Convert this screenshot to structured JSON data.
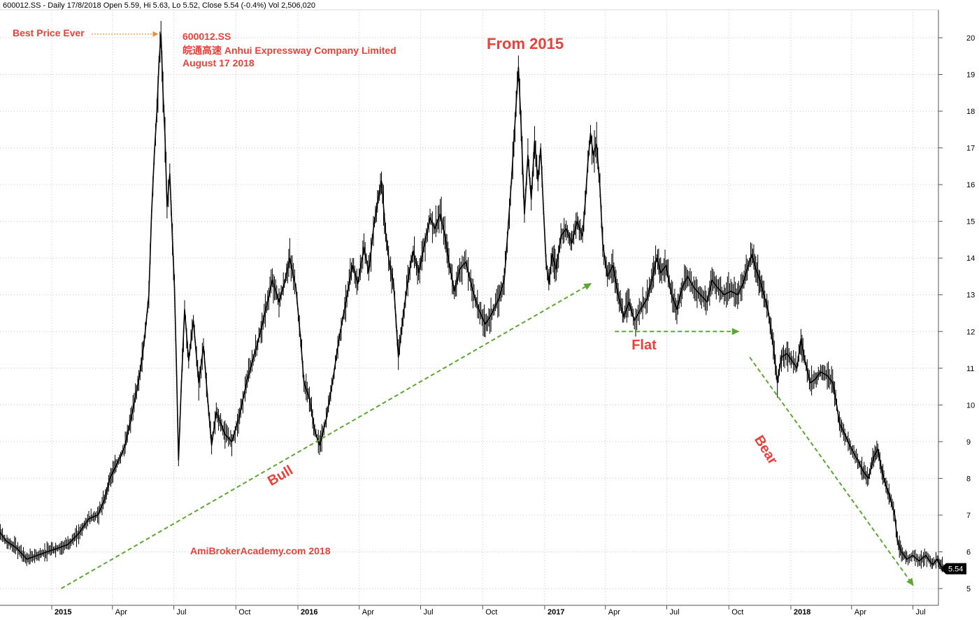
{
  "header": {
    "text": "600012.SS - Daily 17/8/2018 Open 5.59, Hi 5.63, Lo 5.52, Close 5.54 (-0.4%) Vol 2,506,020"
  },
  "info": {
    "ticker": "600012.SS",
    "name": "皖通高速 Anhui Expressway Company Limited",
    "date": "August 17 2018"
  },
  "title": "From 2015",
  "annotations": {
    "best_price": "Best Price Ever",
    "bull": "Bull",
    "flat": "Flat",
    "bear": "Bear",
    "watermark": "AmiBrokerAcademy.com  2018"
  },
  "price_tag": "5.54",
  "colors": {
    "annotation": "#e8413a",
    "trend": "#5aa832",
    "price": "#000000",
    "grid": "#c8c8c8"
  },
  "chart_data": {
    "type": "line",
    "ylim": [
      4.6,
      20.5
    ],
    "y_ticks": [
      5,
      6,
      7,
      8,
      9,
      10,
      11,
      12,
      13,
      14,
      15,
      16,
      17,
      18,
      19,
      20
    ],
    "x_ticks": [
      {
        "label": "2015",
        "bold": true,
        "x": "2015-01-01"
      },
      {
        "label": "Apr",
        "bold": false,
        "x": "2015-04-01"
      },
      {
        "label": "Jul",
        "bold": false,
        "x": "2015-07-01"
      },
      {
        "label": "Oct",
        "bold": false,
        "x": "2015-10-01"
      },
      {
        "label": "2016",
        "bold": true,
        "x": "2016-01-01"
      },
      {
        "label": "Apr",
        "bold": false,
        "x": "2016-04-01"
      },
      {
        "label": "Jul",
        "bold": false,
        "x": "2016-07-01"
      },
      {
        "label": "Oct",
        "bold": false,
        "x": "2016-10-01"
      },
      {
        "label": "2017",
        "bold": true,
        "x": "2017-01-01"
      },
      {
        "label": "Apr",
        "bold": false,
        "x": "2017-04-01"
      },
      {
        "label": "Jul",
        "bold": false,
        "x": "2017-07-01"
      },
      {
        "label": "Oct",
        "bold": false,
        "x": "2017-10-01"
      },
      {
        "label": "2018",
        "bold": true,
        "x": "2018-01-01"
      },
      {
        "label": "Apr",
        "bold": false,
        "x": "2018-04-01"
      },
      {
        "label": "Jul",
        "bold": false,
        "x": "2018-07-01"
      }
    ],
    "series": [
      {
        "values": [
          [
            "2014-06-20",
            5.1
          ],
          [
            "2014-07-10",
            5.3
          ],
          [
            "2014-08-01",
            5.2
          ],
          [
            "2014-08-25",
            5.5
          ],
          [
            "2014-09-15",
            5.8
          ],
          [
            "2014-10-01",
            6.2
          ],
          [
            "2014-10-10",
            6.7
          ],
          [
            "2014-10-25",
            6.3
          ],
          [
            "2014-11-10",
            6.1
          ],
          [
            "2014-11-25",
            5.8
          ],
          [
            "2014-12-10",
            5.9
          ],
          [
            "2014-12-25",
            6.0
          ],
          [
            "2015-01-10",
            6.1
          ],
          [
            "2015-01-25",
            6.2
          ],
          [
            "2015-02-10",
            6.5
          ],
          [
            "2015-02-25",
            6.9
          ],
          [
            "2015-03-10",
            7.0
          ],
          [
            "2015-03-20",
            7.4
          ],
          [
            "2015-03-28",
            8.0
          ],
          [
            "2015-04-08",
            8.4
          ],
          [
            "2015-04-20",
            8.9
          ],
          [
            "2015-04-28",
            9.6
          ],
          [
            "2015-05-05",
            10.2
          ],
          [
            "2015-05-12",
            10.9
          ],
          [
            "2015-05-18",
            11.7
          ],
          [
            "2015-05-25",
            13.0
          ],
          [
            "2015-05-29",
            15.2
          ],
          [
            "2015-06-02",
            16.8
          ],
          [
            "2015-06-06",
            18.0
          ],
          [
            "2015-06-09",
            19.3
          ],
          [
            "2015-06-12",
            20.1
          ],
          [
            "2015-06-15",
            18.5
          ],
          [
            "2015-06-18",
            17.3
          ],
          [
            "2015-06-21",
            15.4
          ],
          [
            "2015-06-25",
            16.3
          ],
          [
            "2015-06-29",
            14.5
          ],
          [
            "2015-07-02",
            13.2
          ],
          [
            "2015-07-05",
            11.0
          ],
          [
            "2015-07-08",
            8.5
          ],
          [
            "2015-07-12",
            10.5
          ],
          [
            "2015-07-17",
            12.6
          ],
          [
            "2015-07-23",
            11.2
          ],
          [
            "2015-07-30",
            12.3
          ],
          [
            "2015-08-07",
            10.6
          ],
          [
            "2015-08-14",
            11.6
          ],
          [
            "2015-08-20",
            10.2
          ],
          [
            "2015-08-26",
            8.9
          ],
          [
            "2015-09-02",
            9.8
          ],
          [
            "2015-09-15",
            9.2
          ],
          [
            "2015-09-25",
            9.0
          ],
          [
            "2015-10-05",
            9.6
          ],
          [
            "2015-10-18",
            10.7
          ],
          [
            "2015-11-01",
            11.6
          ],
          [
            "2015-11-12",
            12.4
          ],
          [
            "2015-11-24",
            13.4
          ],
          [
            "2015-12-04",
            12.8
          ],
          [
            "2015-12-12",
            13.3
          ],
          [
            "2015-12-20",
            14.0
          ],
          [
            "2015-12-29",
            13.2
          ],
          [
            "2016-01-05",
            11.8
          ],
          [
            "2016-01-10",
            10.6
          ],
          [
            "2016-01-18",
            10.2
          ],
          [
            "2016-01-26",
            9.3
          ],
          [
            "2016-02-02",
            8.9
          ],
          [
            "2016-02-12",
            9.6
          ],
          [
            "2016-02-22",
            10.7
          ],
          [
            "2016-03-02",
            11.8
          ],
          [
            "2016-03-12",
            12.8
          ],
          [
            "2016-03-22",
            13.8
          ],
          [
            "2016-03-30",
            13.3
          ],
          [
            "2016-04-08",
            14.3
          ],
          [
            "2016-04-15",
            13.6
          ],
          [
            "2016-04-22",
            14.8
          ],
          [
            "2016-04-28",
            15.5
          ],
          [
            "2016-05-04",
            16.1
          ],
          [
            "2016-05-10",
            14.7
          ],
          [
            "2016-05-16",
            13.8
          ],
          [
            "2016-05-22",
            13.3
          ],
          [
            "2016-05-29",
            11.3
          ],
          [
            "2016-06-05",
            12.4
          ],
          [
            "2016-06-12",
            13.4
          ],
          [
            "2016-06-20",
            14.2
          ],
          [
            "2016-06-28",
            13.6
          ],
          [
            "2016-07-06",
            14.3
          ],
          [
            "2016-07-15",
            15.1
          ],
          [
            "2016-07-22",
            14.8
          ],
          [
            "2016-07-30",
            15.2
          ],
          [
            "2016-08-06",
            14.6
          ],
          [
            "2016-08-12",
            13.9
          ],
          [
            "2016-08-20",
            13.1
          ],
          [
            "2016-08-28",
            13.7
          ],
          [
            "2016-09-06",
            13.9
          ],
          [
            "2016-09-15",
            13.2
          ],
          [
            "2016-09-25",
            12.6
          ],
          [
            "2016-10-05",
            12.2
          ],
          [
            "2016-10-15",
            12.5
          ],
          [
            "2016-10-25",
            12.9
          ],
          [
            "2016-11-02",
            13.4
          ],
          [
            "2016-11-08",
            14.9
          ],
          [
            "2016-11-13",
            16.2
          ],
          [
            "2016-11-18",
            17.7
          ],
          [
            "2016-11-23",
            19.2
          ],
          [
            "2016-11-27",
            17.6
          ],
          [
            "2016-12-02",
            15.2
          ],
          [
            "2016-12-07",
            16.8
          ],
          [
            "2016-12-12",
            15.6
          ],
          [
            "2016-12-17",
            17.2
          ],
          [
            "2016-12-22",
            16.1
          ],
          [
            "2016-12-26",
            17.0
          ],
          [
            "2016-12-30",
            15.4
          ],
          [
            "2017-01-03",
            13.9
          ],
          [
            "2017-01-07",
            13.3
          ],
          [
            "2017-01-12",
            14.1
          ],
          [
            "2017-01-18",
            13.7
          ],
          [
            "2017-01-25",
            14.6
          ],
          [
            "2017-02-02",
            14.8
          ],
          [
            "2017-02-10",
            14.4
          ],
          [
            "2017-02-18",
            15.0
          ],
          [
            "2017-02-26",
            14.6
          ],
          [
            "2017-03-02",
            15.5
          ],
          [
            "2017-03-06",
            16.6
          ],
          [
            "2017-03-10",
            17.4
          ],
          [
            "2017-03-14",
            16.8
          ],
          [
            "2017-03-19",
            17.1
          ],
          [
            "2017-03-24",
            15.9
          ],
          [
            "2017-03-28",
            14.4
          ],
          [
            "2017-04-04",
            13.5
          ],
          [
            "2017-04-12",
            13.8
          ],
          [
            "2017-04-20",
            13.0
          ],
          [
            "2017-04-28",
            12.4
          ],
          [
            "2017-05-06",
            12.8
          ],
          [
            "2017-05-14",
            12.3
          ],
          [
            "2017-05-23",
            12.6
          ],
          [
            "2017-06-02",
            12.9
          ],
          [
            "2017-06-10",
            13.5
          ],
          [
            "2017-06-16",
            14.0
          ],
          [
            "2017-06-22",
            13.6
          ],
          [
            "2017-06-30",
            13.8
          ],
          [
            "2017-07-08",
            13.0
          ],
          [
            "2017-07-16",
            12.6
          ],
          [
            "2017-07-24",
            13.2
          ],
          [
            "2017-08-01",
            13.5
          ],
          [
            "2017-08-10",
            13.2
          ],
          [
            "2017-08-20",
            13.0
          ],
          [
            "2017-08-30",
            12.8
          ],
          [
            "2017-09-06",
            13.4
          ],
          [
            "2017-09-14",
            13.2
          ],
          [
            "2017-09-24",
            13.0
          ],
          [
            "2017-10-04",
            13.1
          ],
          [
            "2017-10-14",
            13.0
          ],
          [
            "2017-10-22",
            13.3
          ],
          [
            "2017-10-30",
            13.8
          ],
          [
            "2017-11-04",
            14.1
          ],
          [
            "2017-11-10",
            13.7
          ],
          [
            "2017-11-16",
            13.4
          ],
          [
            "2017-11-22",
            13.0
          ],
          [
            "2017-11-28",
            12.6
          ],
          [
            "2017-12-06",
            11.6
          ],
          [
            "2017-12-12",
            10.6
          ],
          [
            "2017-12-18",
            11.3
          ],
          [
            "2017-12-26",
            11.4
          ],
          [
            "2018-01-03",
            11.2
          ],
          [
            "2018-01-10",
            11.0
          ],
          [
            "2018-01-16",
            11.8
          ],
          [
            "2018-01-22",
            11.2
          ],
          [
            "2018-01-30",
            10.6
          ],
          [
            "2018-02-06",
            10.7
          ],
          [
            "2018-02-14",
            10.9
          ],
          [
            "2018-02-24",
            10.8
          ],
          [
            "2018-03-04",
            10.6
          ],
          [
            "2018-03-10",
            10.0
          ],
          [
            "2018-03-14",
            9.5
          ],
          [
            "2018-03-22",
            9.2
          ],
          [
            "2018-04-01",
            8.8
          ],
          [
            "2018-04-10",
            8.5
          ],
          [
            "2018-04-18",
            8.2
          ],
          [
            "2018-04-26",
            8.0
          ],
          [
            "2018-05-04",
            8.6
          ],
          [
            "2018-05-10",
            8.8
          ],
          [
            "2018-05-16",
            8.2
          ],
          [
            "2018-05-22",
            7.8
          ],
          [
            "2018-05-28",
            7.5
          ],
          [
            "2018-06-04",
            7.0
          ],
          [
            "2018-06-08",
            6.3
          ],
          [
            "2018-06-14",
            6.0
          ],
          [
            "2018-06-22",
            5.8
          ],
          [
            "2018-07-01",
            5.9
          ],
          [
            "2018-07-10",
            5.75
          ],
          [
            "2018-07-20",
            5.9
          ],
          [
            "2018-07-30",
            5.65
          ],
          [
            "2018-08-06",
            5.8
          ],
          [
            "2018-08-12",
            5.6
          ],
          [
            "2018-08-17",
            5.54
          ]
        ]
      }
    ],
    "trend_lines": [
      {
        "name": "Bull",
        "from": [
          "2015-01-15",
          5.0
        ],
        "to": [
          "2017-03-10",
          13.3
        ]
      },
      {
        "name": "Flat",
        "from": [
          "2017-04-15",
          12.0
        ],
        "to": [
          "2017-10-15",
          12.0
        ]
      },
      {
        "name": "Bear",
        "from": [
          "2017-11-01",
          11.3
        ],
        "to": [
          "2018-07-01",
          5.1
        ]
      }
    ],
    "best_price_arrow": {
      "from": [
        "2015-03-01",
        20.1
      ],
      "to": [
        "2015-06-07",
        20.1
      ]
    }
  }
}
